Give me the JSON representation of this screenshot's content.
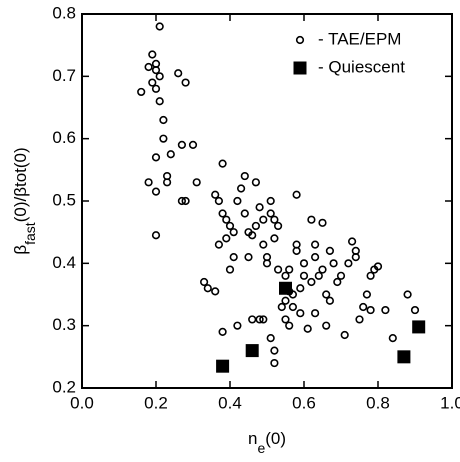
{
  "chart_data": {
    "type": "scatter",
    "x_label": [
      "n",
      "e",
      "(0)"
    ],
    "y_label": [
      "β",
      "fast",
      "(0)/βtot(0)"
    ],
    "xlim": [
      0,
      1
    ],
    "ylim": [
      0.2,
      0.8
    ],
    "xticks": [
      {
        "value": 0,
        "label": "0.0"
      },
      0.2,
      0.4,
      0.6,
      0.8,
      {
        "value": 1,
        "label": "1.0"
      }
    ],
    "yticks": [
      0.2,
      0.3,
      0.4,
      0.5,
      0.6,
      0.7,
      0.8
    ],
    "legend": "upper right",
    "series": [
      {
        "name": "- TAE/EPM",
        "color": "#000000",
        "marker": "circle",
        "x": [
          0.16,
          0.18,
          0.19,
          0.2,
          0.2,
          0.19,
          0.21,
          0.2,
          0.21,
          0.22,
          0.21,
          0.18,
          0.2,
          0.2,
          0.2,
          0.22,
          0.23,
          0.23,
          0.24,
          0.26,
          0.27,
          0.28,
          0.27,
          0.28,
          0.3,
          0.31,
          0.33,
          0.34,
          0.36,
          0.36,
          0.37,
          0.38,
          0.38,
          0.39,
          0.37,
          0.39,
          0.4,
          0.4,
          0.41,
          0.42,
          0.43,
          0.44,
          0.44,
          0.45,
          0.46,
          0.47,
          0.47,
          0.48,
          0.49,
          0.49,
          0.5,
          0.5,
          0.51,
          0.52,
          0.52,
          0.53,
          0.53,
          0.55,
          0.56,
          0.57,
          0.57,
          0.58,
          0.58,
          0.59,
          0.6,
          0.6,
          0.62,
          0.63,
          0.63,
          0.64,
          0.65,
          0.65,
          0.66,
          0.67,
          0.68,
          0.69,
          0.7,
          0.71,
          0.72,
          0.73,
          0.74,
          0.75,
          0.76,
          0.77,
          0.78,
          0.79,
          0.8,
          0.78,
          0.82,
          0.84,
          0.88,
          0.9,
          0.56,
          0.55,
          0.54,
          0.55,
          0.56,
          0.51,
          0.52,
          0.52,
          0.49,
          0.46,
          0.48,
          0.42,
          0.38,
          0.45,
          0.41,
          0.51,
          0.63,
          0.59,
          0.66,
          0.67,
          0.61,
          0.74,
          0.58,
          0.62
        ],
        "values": [
          0.675,
          0.715,
          0.735,
          0.72,
          0.71,
          0.69,
          0.7,
          0.68,
          0.78,
          0.63,
          0.66,
          0.53,
          0.515,
          0.445,
          0.57,
          0.6,
          0.54,
          0.53,
          0.575,
          0.705,
          0.59,
          0.69,
          0.5,
          0.5,
          0.59,
          0.53,
          0.37,
          0.36,
          0.355,
          0.51,
          0.5,
          0.56,
          0.48,
          0.47,
          0.43,
          0.44,
          0.39,
          0.46,
          0.45,
          0.5,
          0.52,
          0.54,
          0.48,
          0.45,
          0.445,
          0.53,
          0.46,
          0.49,
          0.47,
          0.43,
          0.41,
          0.4,
          0.48,
          0.47,
          0.44,
          0.46,
          0.39,
          0.38,
          0.39,
          0.35,
          0.33,
          0.51,
          0.42,
          0.36,
          0.38,
          0.4,
          0.47,
          0.32,
          0.41,
          0.38,
          0.465,
          0.39,
          0.35,
          0.42,
          0.4,
          0.37,
          0.38,
          0.285,
          0.4,
          0.435,
          0.41,
          0.31,
          0.33,
          0.35,
          0.38,
          0.39,
          0.395,
          0.325,
          0.325,
          0.28,
          0.35,
          0.325,
          0.355,
          0.34,
          0.33,
          0.31,
          0.3,
          0.28,
          0.26,
          0.24,
          0.31,
          0.31,
          0.31,
          0.3,
          0.29,
          0.41,
          0.41,
          0.5,
          0.43,
          0.32,
          0.3,
          0.34,
          0.295,
          0.42,
          0.43,
          0.37
        ]
      },
      {
        "name": "- Quiescent",
        "color": "#000000",
        "marker": "square",
        "x": [
          0.38,
          0.46,
          0.55,
          0.87,
          0.91
        ],
        "values": [
          0.235,
          0.26,
          0.36,
          0.25,
          0.298
        ]
      }
    ]
  }
}
